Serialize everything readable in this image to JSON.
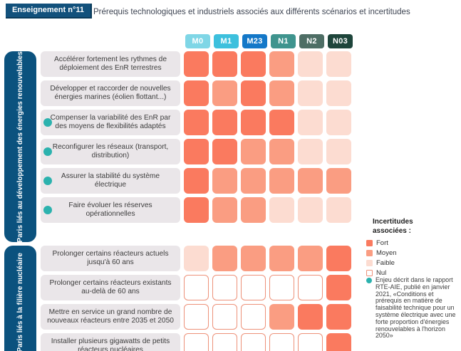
{
  "header": {
    "badge": "Enseignement n°11",
    "title": "Prérequis technologiques et industriels associés aux différents scénarios et incertitudes"
  },
  "chart_data": {
    "type": "heatmap",
    "title": "Prérequis technologiques et industriels associés aux différents scénarios et incertitudes",
    "columns": [
      {
        "label": "M0",
        "color": "#7fd6e6"
      },
      {
        "label": "M1",
        "color": "#3dc0dd"
      },
      {
        "label": "M23",
        "color": "#1478c8"
      },
      {
        "label": "N1",
        "color": "#3f948e"
      },
      {
        "label": "N2",
        "color": "#4e6e65"
      },
      {
        "label": "N03",
        "color": "#1e453b"
      }
    ],
    "levels": {
      "fort": "#fa7a5f",
      "moyen": "#fa9d82",
      "faible": "#fcdcd1",
      "nul": "#ffffff"
    },
    "nul_border": "#ed9179",
    "dot_color": "#2cb2ae",
    "sidebar_color": "#0b527e",
    "groups": [
      {
        "label": "Paris liés au développement des énergies renouvelables",
        "rows": [
          {
            "label": "Accélérer fortement les rythmes de déploiement des EnR terrestres",
            "dot": false,
            "values": [
              "fort",
              "fort",
              "fort",
              "moyen",
              "faible",
              "faible"
            ]
          },
          {
            "label": "Développer et raccorder de nouvelles énergies marines (éolien flottant...)",
            "dot": false,
            "values": [
              "fort",
              "moyen",
              "fort",
              "moyen",
              "faible",
              "faible"
            ]
          },
          {
            "label": "Compenser la variabilité des EnR par des moyens de flexibilités adaptés",
            "dot": true,
            "values": [
              "fort",
              "fort",
              "fort",
              "fort",
              "faible",
              "faible"
            ]
          },
          {
            "label": "Reconfigurer les réseaux (transport, distribution)",
            "dot": true,
            "values": [
              "fort",
              "fort",
              "moyen",
              "moyen",
              "faible",
              "faible"
            ]
          },
          {
            "label": "Assurer la stabilité du système électrique",
            "dot": true,
            "values": [
              "fort",
              "moyen",
              "moyen",
              "moyen",
              "moyen",
              "moyen"
            ]
          },
          {
            "label": "Faire évoluer les réserves opérationnelles",
            "dot": true,
            "values": [
              "fort",
              "moyen",
              "moyen",
              "faible",
              "faible",
              "faible"
            ]
          }
        ]
      },
      {
        "label": "Paris liés à la filière nucléaire",
        "rows": [
          {
            "label": "Prolonger certains réacteurs actuels jusqu'à 60 ans",
            "dot": false,
            "values": [
              "faible",
              "moyen",
              "moyen",
              "moyen",
              "moyen",
              "fort"
            ]
          },
          {
            "label": "Prolonger certains réacteurs existants au-delà de 60 ans",
            "dot": false,
            "values": [
              "nul",
              "nul",
              "nul",
              "nul",
              "nul",
              "fort"
            ]
          },
          {
            "label": "Mettre en service un grand nombre de nouveaux réacteurs entre 2035 et 2050",
            "dot": false,
            "values": [
              "nul",
              "nul",
              "nul",
              "moyen",
              "fort",
              "fort"
            ]
          },
          {
            "label": "Installer plusieurs gigawatts de petits réacteurs nucléaires",
            "dot": false,
            "values": [
              "nul",
              "nul",
              "nul",
              "nul",
              "nul",
              "fort"
            ]
          }
        ]
      }
    ],
    "legend": {
      "title": "Incertitudes associées :",
      "items": [
        {
          "label": "Fort",
          "level": "fort"
        },
        {
          "label": "Moyen",
          "level": "moyen"
        },
        {
          "label": "Faible",
          "level": "faible"
        },
        {
          "label": "Nul",
          "level": "nul"
        }
      ]
    },
    "note": "Enjeu décrit dans le rapport RTE-AIE, publié en janvier 2021, «Conditions et prérequis en matière de faisabilité technique pour un système électrique avec une forte proportion d'énergies renouvelables à l'horizon 2050»"
  }
}
